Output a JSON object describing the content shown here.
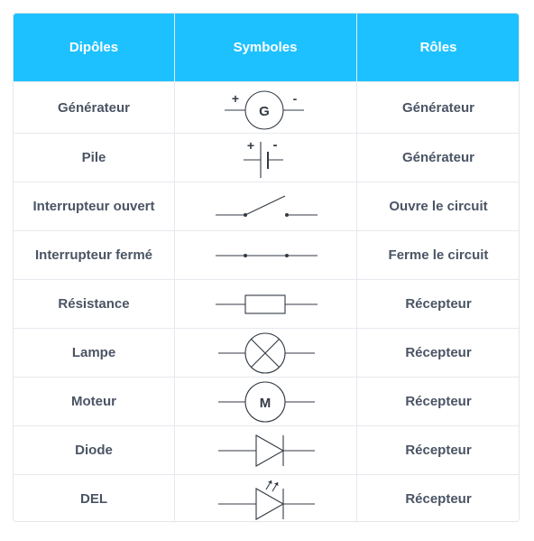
{
  "headers": {
    "dipoles": "Dipôles",
    "symboles": "Symboles",
    "roles": "Rôles"
  },
  "colors": {
    "header_bg": "#1ec1ff",
    "header_text": "#ffffff",
    "body_text": "#4a5464",
    "symbol_stroke": "#333a44"
  },
  "rows": [
    {
      "dipole": "Générateur",
      "symbol": "generator-symbol-icon",
      "symbol_letter": "G",
      "plus": "+",
      "minus": "-",
      "role": "Générateur"
    },
    {
      "dipole": "Pile",
      "symbol": "battery-symbol-icon",
      "plus": "+",
      "minus": "-",
      "role": "Générateur"
    },
    {
      "dipole": "Interrupteur ouvert",
      "symbol": "open-switch-symbol-icon",
      "role": "Ouvre le circuit"
    },
    {
      "dipole": "Interrupteur fermé",
      "symbol": "closed-switch-symbol-icon",
      "role": "Ferme le circuit"
    },
    {
      "dipole": "Résistance",
      "symbol": "resistor-symbol-icon",
      "role": "Récepteur"
    },
    {
      "dipole": "Lampe",
      "symbol": "lamp-symbol-icon",
      "role": "Récepteur"
    },
    {
      "dipole": "Moteur",
      "symbol": "motor-symbol-icon",
      "symbol_letter": "M",
      "role": "Récepteur"
    },
    {
      "dipole": "Diode",
      "symbol": "diode-symbol-icon",
      "role": "Récepteur"
    },
    {
      "dipole": "DEL",
      "symbol": "led-symbol-icon",
      "role": "Récepteur"
    }
  ]
}
